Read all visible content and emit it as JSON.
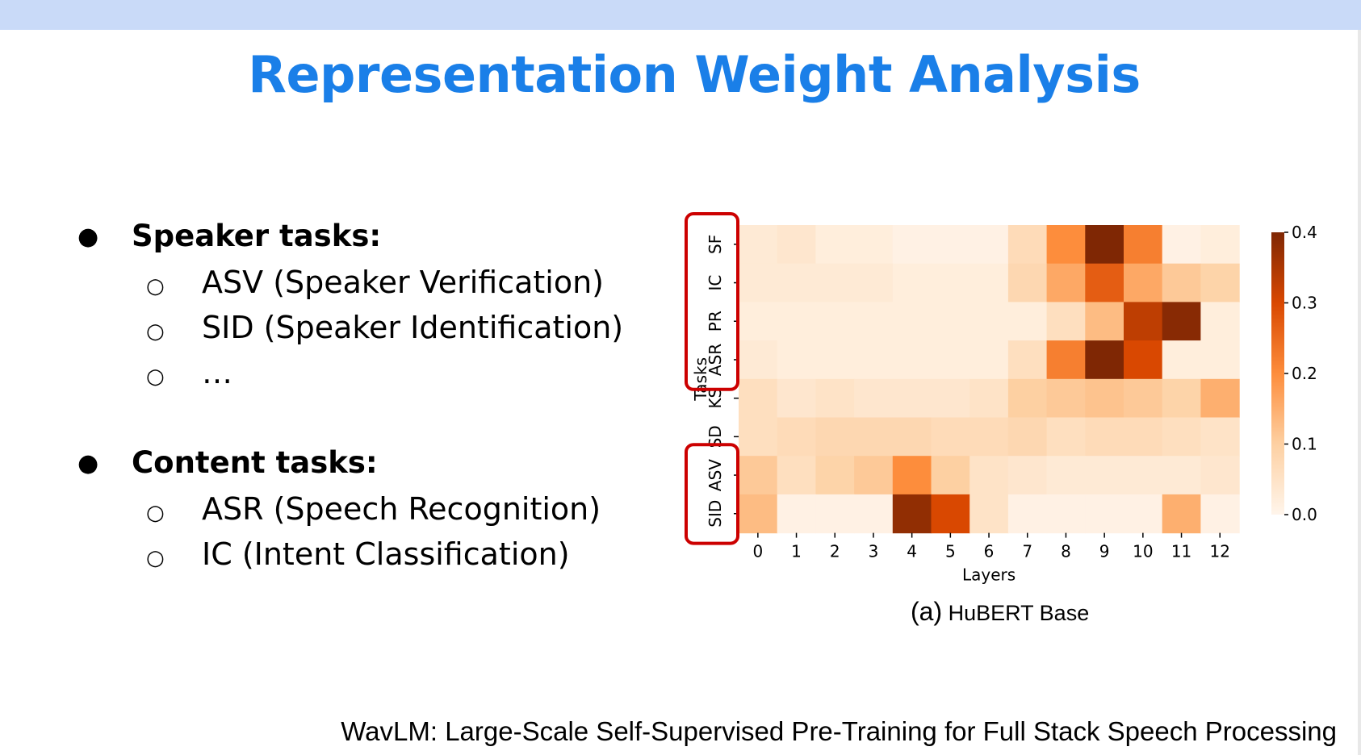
{
  "slide": {
    "title": "Representation Weight Analysis",
    "footer": "WavLM: Large-Scale Self-Supervised Pre-Training for Full Stack Speech Processing",
    "caption_label": "(a)",
    "caption_text": "HuBERT Base"
  },
  "bullets": [
    {
      "heading": "Speaker tasks:",
      "items": [
        "ASV (Speaker Verification)",
        "SID (Speaker Identification)",
        "…"
      ]
    },
    {
      "heading": "Content tasks:",
      "items": [
        "ASR (Speech Recognition)",
        "IC (Intent Classification)"
      ]
    }
  ],
  "chart_data": {
    "type": "heatmap",
    "xlabel": "Layers",
    "ylabel": "Tasks",
    "x": [
      "0",
      "1",
      "2",
      "3",
      "4",
      "5",
      "6",
      "7",
      "8",
      "9",
      "10",
      "11",
      "12"
    ],
    "y": [
      "SF",
      "IC",
      "PR",
      "ASR",
      "KS",
      "SD",
      "ASV",
      "SID"
    ],
    "colorbar": {
      "min": 0.0,
      "max": 0.4,
      "ticks": [
        "0.0",
        "0.1",
        "0.2",
        "0.3",
        "0.4"
      ]
    },
    "colormap": [
      "#fff5eb",
      "#fdd0a2",
      "#fd8d3c",
      "#d94801",
      "#7f2704"
    ],
    "values": [
      [
        0.03,
        0.04,
        0.02,
        0.02,
        0.01,
        0.01,
        0.01,
        0.07,
        0.2,
        0.4,
        0.22,
        0.01,
        0.02
      ],
      [
        0.03,
        0.03,
        0.03,
        0.03,
        0.02,
        0.02,
        0.02,
        0.08,
        0.16,
        0.27,
        0.16,
        0.11,
        0.09
      ],
      [
        0.02,
        0.02,
        0.02,
        0.02,
        0.02,
        0.02,
        0.02,
        0.02,
        0.06,
        0.13,
        0.33,
        0.39,
        0.02
      ],
      [
        0.03,
        0.02,
        0.02,
        0.02,
        0.02,
        0.02,
        0.02,
        0.06,
        0.22,
        0.4,
        0.3,
        0.02,
        0.02
      ],
      [
        0.06,
        0.04,
        0.05,
        0.04,
        0.04,
        0.04,
        0.05,
        0.1,
        0.11,
        0.12,
        0.11,
        0.09,
        0.15
      ],
      [
        0.06,
        0.07,
        0.08,
        0.08,
        0.08,
        0.07,
        0.07,
        0.08,
        0.06,
        0.07,
        0.07,
        0.06,
        0.05
      ],
      [
        0.11,
        0.06,
        0.09,
        0.11,
        0.2,
        0.1,
        0.05,
        0.04,
        0.03,
        0.03,
        0.03,
        0.03,
        0.04
      ],
      [
        0.13,
        0.01,
        0.01,
        0.01,
        0.38,
        0.3,
        0.05,
        0.01,
        0.01,
        0.01,
        0.01,
        0.15,
        0.01
      ]
    ],
    "highlight_boxes": [
      {
        "rows": [
          "SF",
          "IC",
          "PR",
          "ASR"
        ],
        "color": "#cc0000"
      },
      {
        "rows": [
          "ASV",
          "SID"
        ],
        "color": "#cc0000"
      }
    ]
  }
}
